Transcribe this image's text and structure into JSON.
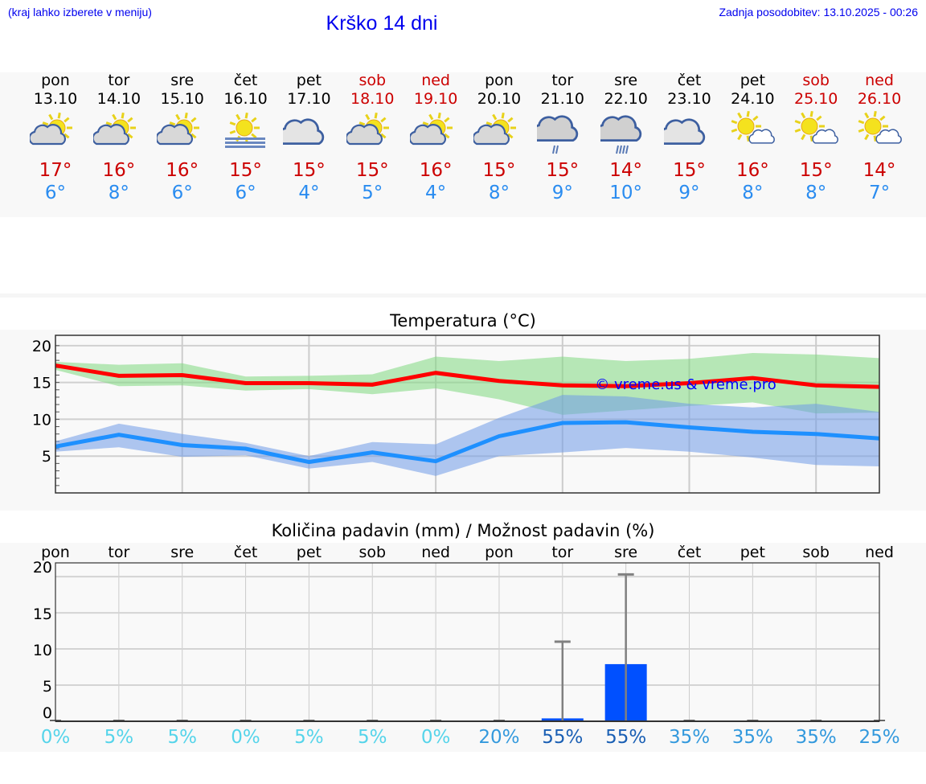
{
  "header": {
    "hint": "(kraj lahko izberete v meniju)",
    "title": "Krško 14 dni",
    "updated": "Zadnja posodobitev: 13.10.2025 - 00:26"
  },
  "colors": {
    "weekday": "#000000",
    "weekend": "#cc0000",
    "max": "#ff0000",
    "min": "#1e90ff",
    "rain": "#0050ff"
  },
  "days": [
    {
      "name": "pon",
      "date": "13.10",
      "weekend": false,
      "icon": "partly-cloudy-icon",
      "max": "17°",
      "min": "6°",
      "pct": "0%"
    },
    {
      "name": "tor",
      "date": "14.10",
      "weekend": false,
      "icon": "partly-cloudy-icon",
      "max": "16°",
      "min": "8°",
      "pct": "5%"
    },
    {
      "name": "sre",
      "date": "15.10",
      "weekend": false,
      "icon": "partly-cloudy-icon",
      "max": "16°",
      "min": "6°",
      "pct": "5%"
    },
    {
      "name": "čet",
      "date": "16.10",
      "weekend": false,
      "icon": "fog-sun-icon",
      "max": "15°",
      "min": "6°",
      "pct": "0%"
    },
    {
      "name": "pet",
      "date": "17.10",
      "weekend": false,
      "icon": "cloudy-icon",
      "max": "15°",
      "min": "4°",
      "pct": "5%"
    },
    {
      "name": "sob",
      "date": "18.10",
      "weekend": true,
      "icon": "partly-cloudy-icon",
      "max": "15°",
      "min": "5°",
      "pct": "5%"
    },
    {
      "name": "ned",
      "date": "19.10",
      "weekend": true,
      "icon": "partly-cloudy-icon",
      "max": "16°",
      "min": "4°",
      "pct": "0%"
    },
    {
      "name": "pon",
      "date": "20.10",
      "weekend": false,
      "icon": "partly-cloudy-icon",
      "max": "15°",
      "min": "8°",
      "pct": "20%"
    },
    {
      "name": "tor",
      "date": "21.10",
      "weekend": false,
      "icon": "light-rain-icon",
      "max": "15°",
      "min": "9°",
      "pct": "55%"
    },
    {
      "name": "sre",
      "date": "22.10",
      "weekend": false,
      "icon": "rain-icon",
      "max": "14°",
      "min": "10°",
      "pct": "55%"
    },
    {
      "name": "čet",
      "date": "23.10",
      "weekend": false,
      "icon": "cloudy-icon",
      "max": "15°",
      "min": "9°",
      "pct": "35%"
    },
    {
      "name": "pet",
      "date": "24.10",
      "weekend": false,
      "icon": "mostly-sunny-icon",
      "max": "16°",
      "min": "8°",
      "pct": "35%"
    },
    {
      "name": "sob",
      "date": "25.10",
      "weekend": true,
      "icon": "mostly-sunny-icon",
      "max": "15°",
      "min": "8°",
      "pct": "35%"
    },
    {
      "name": "ned",
      "date": "26.10",
      "weekend": true,
      "icon": "mostly-sunny-icon",
      "max": "14°",
      "min": "7°",
      "pct": "25%"
    }
  ],
  "chart_data": [
    {
      "type": "line",
      "title": "Temperatura (°C)",
      "ylim": [
        0,
        21.4
      ],
      "yticks": [
        "20",
        "15",
        "10",
        "5"
      ],
      "watermark": "© vreme.us & vreme.pro",
      "series": [
        {
          "name": "max",
          "values": [
            17.3,
            15.9,
            16.0,
            14.9,
            14.9,
            14.7,
            16.3,
            15.2,
            14.6,
            14.5,
            14.9,
            15.6,
            14.6,
            14.4
          ],
          "band_high": [
            17.8,
            17.4,
            17.6,
            15.8,
            15.9,
            16.1,
            18.5,
            17.9,
            18.5,
            17.9,
            18.2,
            19.0,
            18.8,
            18.3
          ],
          "band_low": [
            16.7,
            14.5,
            14.6,
            13.9,
            14.1,
            13.4,
            14.2,
            12.7,
            10.6,
            11.2,
            11.8,
            12.3,
            10.8,
            10.9
          ]
        },
        {
          "name": "min",
          "values": [
            6.3,
            7.9,
            6.5,
            6.0,
            4.2,
            5.5,
            4.3,
            7.7,
            9.5,
            9.6,
            8.9,
            8.3,
            8.0,
            7.4
          ],
          "band_high": [
            7.0,
            9.4,
            8.0,
            6.8,
            5.0,
            6.9,
            6.6,
            10.2,
            13.3,
            13.1,
            12.1,
            11.6,
            12.1,
            11.0
          ],
          "band_low": [
            5.6,
            6.2,
            4.9,
            5.1,
            3.3,
            4.2,
            2.3,
            5.0,
            5.5,
            6.1,
            5.6,
            4.8,
            3.8,
            3.6
          ]
        }
      ]
    },
    {
      "type": "bar",
      "title": "Količina padavin (mm) / Možnost padavin (%)",
      "ylim": [
        0,
        21.9
      ],
      "yticks": [
        "20",
        "15",
        "10",
        "5",
        "0"
      ],
      "values": [
        0,
        0,
        0,
        0,
        0,
        0,
        0,
        0,
        0.4,
        7.9,
        0,
        0,
        0,
        0
      ],
      "error_high": [
        0,
        0,
        0,
        0,
        0,
        0,
        0,
        0,
        11,
        20.3,
        0,
        0,
        0,
        0
      ]
    }
  ]
}
